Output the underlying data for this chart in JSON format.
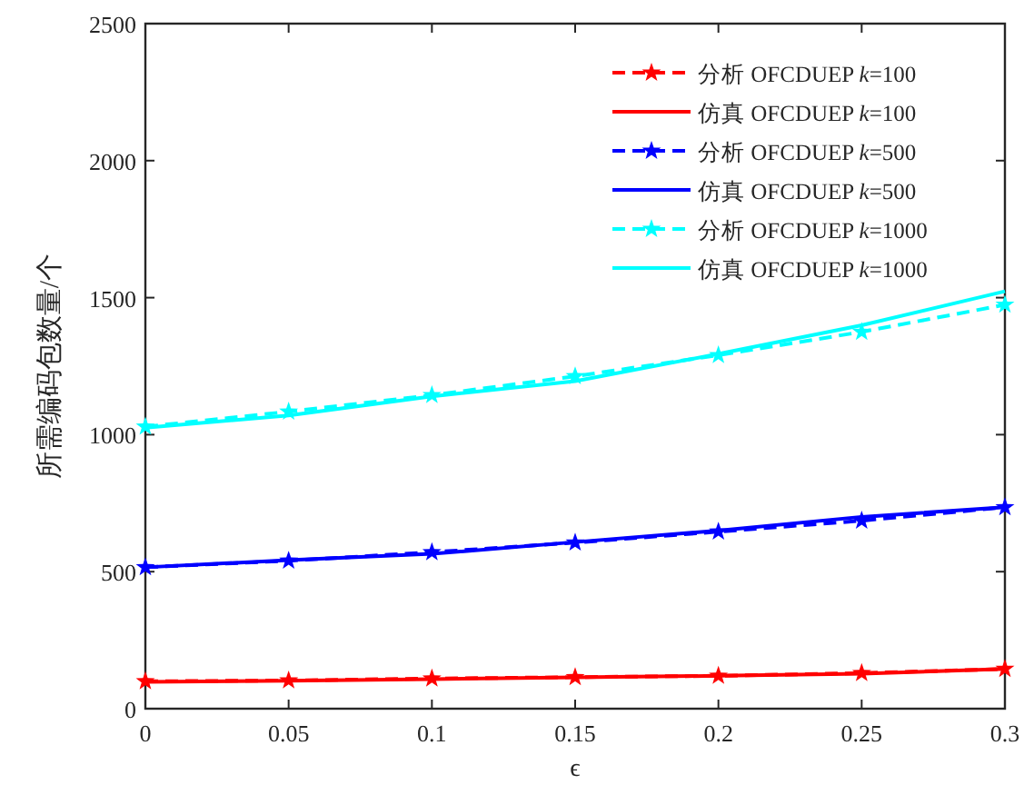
{
  "chart_data": {
    "type": "line",
    "xlabel": "ϵ",
    "ylabel": "所需编码包数量/个",
    "x": [
      0,
      0.05,
      0.1,
      0.15,
      0.2,
      0.25,
      0.3
    ],
    "xlim": [
      0,
      0.3
    ],
    "xticks": [
      0,
      0.05,
      0.1,
      0.15,
      0.2,
      0.25,
      0.3
    ],
    "ylim": [
      0,
      2500
    ],
    "yticks": [
      0,
      500,
      1000,
      1500,
      2000,
      2500
    ],
    "grid": false,
    "legend": "top right",
    "series": [
      {
        "name": "分析 OFCDUEP *k*=100",
        "color": "#ff0000",
        "line_style": "dashed",
        "marker": "star",
        "values": [
          100,
          103,
          110,
          115,
          120,
          130,
          145
        ]
      },
      {
        "name": "仿真 OFCDUEP *k*=100",
        "color": "#ff0000",
        "line_style": "solid",
        "marker": "none",
        "values": [
          98,
          102,
          108,
          114,
          120,
          128,
          145
        ]
      },
      {
        "name": "分析 OFCDUEP *k*=500",
        "color": "#0000ff",
        "line_style": "dashed",
        "marker": "star",
        "values": [
          516,
          540,
          571,
          606,
          646,
          686,
          735
        ]
      },
      {
        "name": "仿真 OFCDUEP *k*=500",
        "color": "#0000ff",
        "line_style": "solid",
        "marker": "none",
        "values": [
          516,
          542,
          565,
          608,
          650,
          700,
          735
        ]
      },
      {
        "name": "分析 OFCDUEP *k*=1000",
        "color": "#00ffff",
        "line_style": "dashed",
        "marker": "star",
        "values": [
          1029,
          1084,
          1144,
          1213,
          1290,
          1375,
          1474
        ]
      },
      {
        "name": "仿真 OFCDUEP *k*=1000",
        "color": "#00ffff",
        "line_style": "solid",
        "marker": "none",
        "values": [
          1025,
          1070,
          1140,
          1195,
          1295,
          1399,
          1523
        ]
      }
    ]
  }
}
